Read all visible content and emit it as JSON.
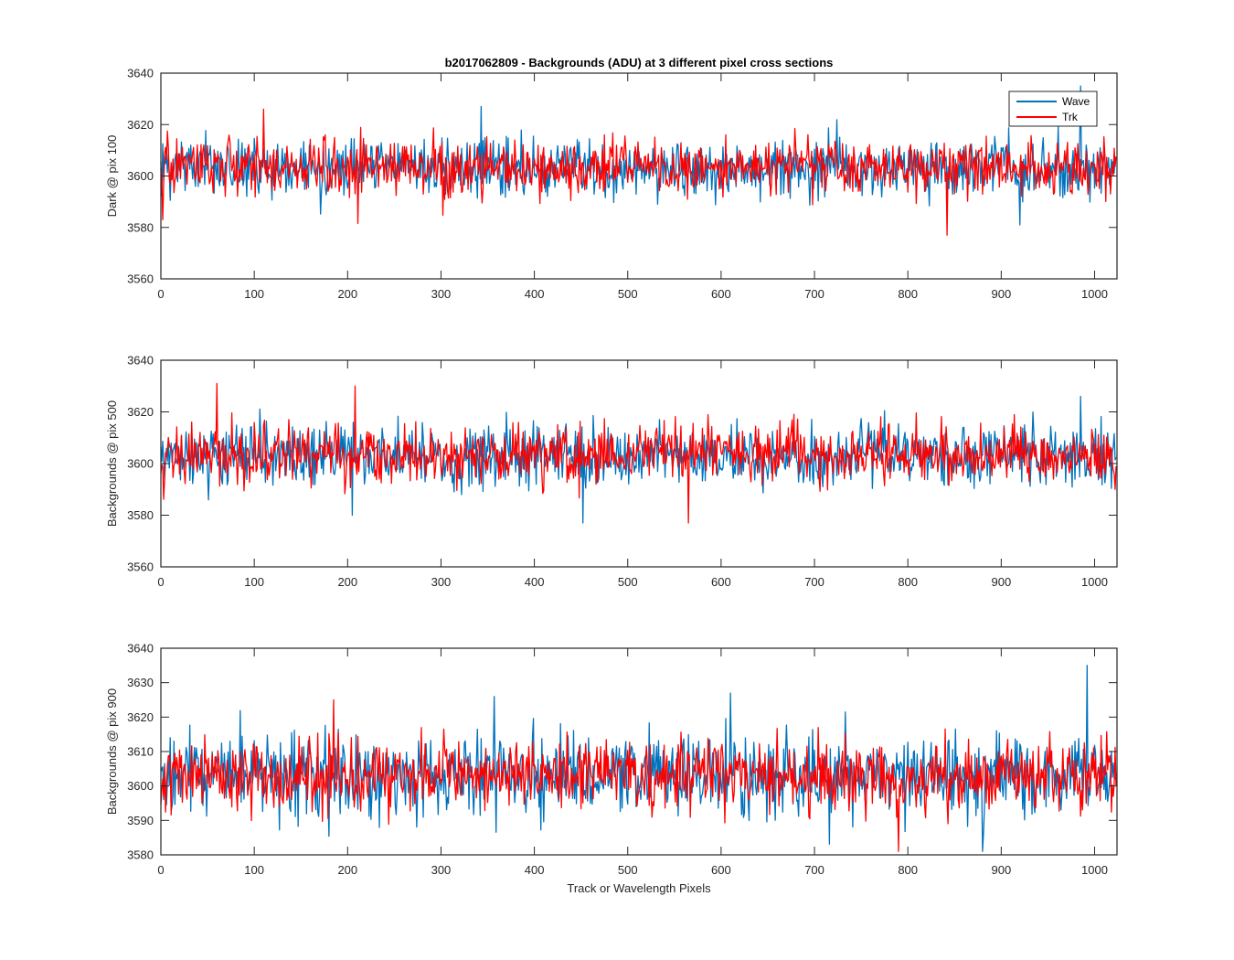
{
  "figure": {
    "title": "b2017062809 - Backgrounds (ADU) at 3 different pixel cross sections",
    "colors": {
      "wave": "#0072BD",
      "trk": "#FF0000",
      "axes": "#262626",
      "background": "#FFFFFF"
    }
  },
  "legend": {
    "placement": "top-right of first panel",
    "entries": [
      {
        "label": "Wave",
        "color": "#0072BD"
      },
      {
        "label": "Trk",
        "color": "#FF0000"
      }
    ]
  },
  "chart_data": [
    {
      "type": "line",
      "title": "b2017062809 - Backgrounds (ADU) at 3 different pixel cross sections",
      "xlabel": "",
      "ylabel": "Dark @ pix 100",
      "xlim": [
        0,
        1024
      ],
      "ylim": [
        3560,
        3640
      ],
      "xticks": [
        "0",
        "100",
        "200",
        "300",
        "400",
        "500",
        "600",
        "700",
        "800",
        "900",
        "1000"
      ],
      "yticks": [
        "3560",
        "3580",
        "3600",
        "3620",
        "3640"
      ],
      "grid": false,
      "legend": "top-right",
      "series": [
        {
          "name": "Wave",
          "color": "#0072BD",
          "summary": {
            "n_points": 1024,
            "mean": 3603,
            "std": 6.5,
            "min": 3581,
            "max": 3635
          },
          "notable_points": [
            [
              343,
              3627
            ],
            [
              985,
              3635
            ],
            [
              920,
              3581
            ]
          ]
        },
        {
          "name": "Trk",
          "color": "#FF0000",
          "summary": {
            "n_points": 1024,
            "mean": 3603,
            "std": 6.5,
            "min": 3577,
            "max": 3626
          },
          "notable_points": [
            [
              2,
              3583
            ],
            [
              110,
              3626
            ],
            [
              842,
              3577
            ]
          ]
        }
      ]
    },
    {
      "type": "line",
      "title": "",
      "xlabel": "",
      "ylabel": "Backgrounds @ pix 500",
      "xlim": [
        0,
        1024
      ],
      "ylim": [
        3560,
        3640
      ],
      "xticks": [
        "0",
        "100",
        "200",
        "300",
        "400",
        "500",
        "600",
        "700",
        "800",
        "900",
        "1000"
      ],
      "yticks": [
        "3560",
        "3580",
        "3600",
        "3620",
        "3640"
      ],
      "grid": false,
      "series": [
        {
          "name": "Wave",
          "color": "#0072BD",
          "summary": {
            "n_points": 1024,
            "mean": 3603,
            "std": 6.5,
            "min": 3577,
            "max": 3626
          },
          "notable_points": [
            [
              452,
              3577
            ],
            [
              985,
              3626
            ],
            [
              205,
              3580
            ]
          ]
        },
        {
          "name": "Trk",
          "color": "#FF0000",
          "summary": {
            "n_points": 1024,
            "mean": 3603,
            "std": 6.5,
            "min": 3577,
            "max": 3631
          },
          "notable_points": [
            [
              60,
              3631
            ],
            [
              208,
              3630
            ],
            [
              565,
              3577
            ]
          ]
        }
      ]
    },
    {
      "type": "line",
      "title": "",
      "xlabel": "Track or Wavelength Pixels",
      "ylabel": "Backgrounds @ pix 900",
      "xlim": [
        0,
        1024
      ],
      "ylim": [
        3580,
        3640
      ],
      "xticks": [
        "0",
        "100",
        "200",
        "300",
        "400",
        "500",
        "600",
        "700",
        "800",
        "900",
        "1000"
      ],
      "yticks": [
        "3580",
        "3590",
        "3600",
        "3610",
        "3620",
        "3630",
        "3640"
      ],
      "grid": false,
      "series": [
        {
          "name": "Wave",
          "color": "#0072BD",
          "summary": {
            "n_points": 1024,
            "mean": 3603,
            "std": 7,
            "min": 3581,
            "max": 3635
          },
          "notable_points": [
            [
              992,
              3635
            ],
            [
              610,
              3627
            ],
            [
              357,
              3626
            ],
            [
              880,
              3581
            ]
          ]
        },
        {
          "name": "Trk",
          "color": "#FF0000",
          "summary": {
            "n_points": 1024,
            "mean": 3603,
            "std": 6,
            "min": 3581,
            "max": 3625
          },
          "notable_points": [
            [
              185,
              3625
            ],
            [
              790,
              3581
            ]
          ]
        }
      ]
    }
  ]
}
